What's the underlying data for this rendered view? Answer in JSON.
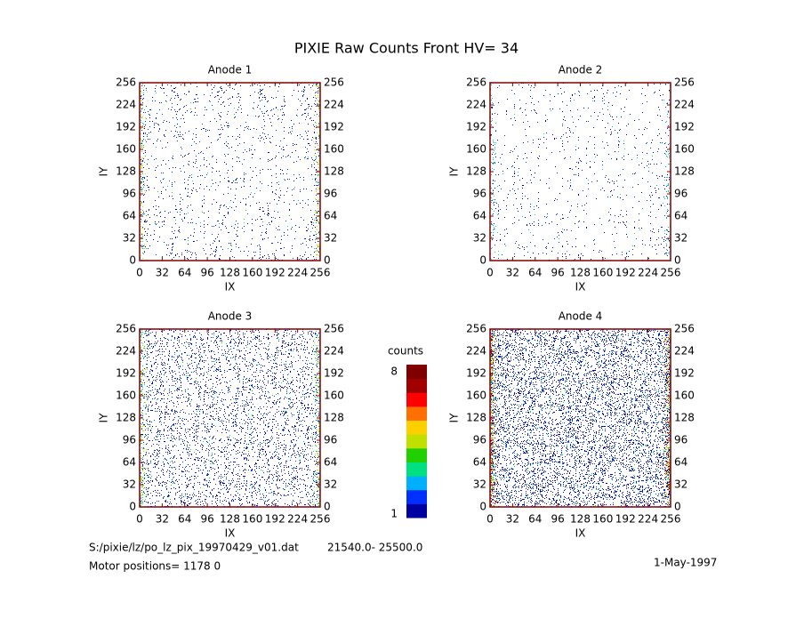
{
  "title": "PIXIE Raw Counts Front HV= 34",
  "chart_data": [
    {
      "type": "heatmap",
      "title": "Anode 1",
      "xlabel": "IX",
      "ylabel": "IY",
      "xlim": [
        0,
        256
      ],
      "ylim": [
        0,
        256
      ],
      "xticks": [
        0,
        32,
        64,
        96,
        128,
        160,
        192,
        224,
        256
      ],
      "yticks": [
        0,
        32,
        64,
        96,
        128,
        160,
        192,
        224,
        256
      ]
    },
    {
      "type": "heatmap",
      "title": "Anode 2",
      "xlabel": "IX",
      "ylabel": "IY",
      "xlim": [
        0,
        256
      ],
      "ylim": [
        0,
        256
      ],
      "xticks": [
        0,
        32,
        64,
        96,
        128,
        160,
        192,
        224,
        256
      ],
      "yticks": [
        0,
        32,
        64,
        96,
        128,
        160,
        192,
        224,
        256
      ]
    },
    {
      "type": "heatmap",
      "title": "Anode 3",
      "xlabel": "IX",
      "ylabel": "IY",
      "xlim": [
        0,
        256
      ],
      "ylim": [
        0,
        256
      ],
      "xticks": [
        0,
        32,
        64,
        96,
        128,
        160,
        192,
        224,
        256
      ],
      "yticks": [
        0,
        32,
        64,
        96,
        128,
        160,
        192,
        224,
        256
      ]
    },
    {
      "type": "heatmap",
      "title": "Anode 4",
      "xlabel": "IX",
      "ylabel": "IY",
      "xlim": [
        0,
        256
      ],
      "ylim": [
        0,
        256
      ],
      "xticks": [
        0,
        32,
        64,
        96,
        128,
        160,
        192,
        224,
        256
      ],
      "yticks": [
        0,
        32,
        64,
        96,
        128,
        160,
        192,
        224,
        256
      ]
    }
  ],
  "colorbar": {
    "label": "counts",
    "lim": [
      1,
      8
    ],
    "ticks": [
      1,
      8
    ],
    "colors": [
      "#0000a0",
      "#0030ff",
      "#00b0ff",
      "#00e080",
      "#20d000",
      "#c0e000",
      "#ffd000",
      "#ff7000",
      "#ff0000",
      "#a00000",
      "#800000"
    ]
  },
  "footer": {
    "file": "S:/pixie/lz/po_lz_pix_19970429_v01.dat",
    "range": "21540.0- 25500.0",
    "motor": "Motor positions= 1178 0",
    "date": "1-May-1997"
  }
}
